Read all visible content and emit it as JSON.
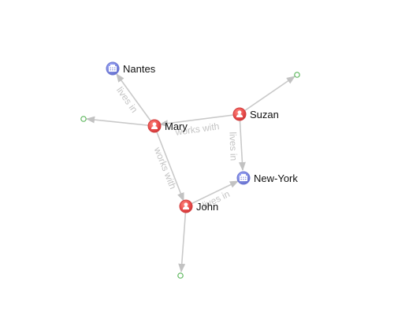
{
  "graph": {
    "nodes": {
      "mary": {
        "label": "Mary",
        "kind": "person",
        "icon": "person-icon"
      },
      "john": {
        "label": "John",
        "kind": "person",
        "icon": "person-icon"
      },
      "suzan": {
        "label": "Suzan",
        "kind": "person",
        "icon": "person-icon"
      },
      "nantes": {
        "label": "Nantes",
        "kind": "city",
        "icon": "building-icon"
      },
      "new_york": {
        "label": "New-York",
        "kind": "city",
        "icon": "building-icon"
      }
    },
    "edges": {
      "mary_nantes": {
        "from": "Mary",
        "to": "Nantes",
        "label": "lives in"
      },
      "suzan_mary": {
        "from": "Suzan",
        "to": "Mary",
        "label": "works with"
      },
      "mary_john": {
        "from": "Mary",
        "to": "John",
        "label": "works with"
      },
      "suzan_newyork": {
        "from": "Suzan",
        "to": "New-York",
        "label": "lives in"
      },
      "john_newyork": {
        "from": "John",
        "to": "New-York",
        "label": "lives in"
      }
    },
    "unlabeled_stub_nodes": 3,
    "colors": {
      "person": "#e84a4a",
      "city": "#7b86dd",
      "edge": "#c9c9c9",
      "edge_label": "#c4c4c4",
      "stub": "#5fb85f"
    }
  }
}
